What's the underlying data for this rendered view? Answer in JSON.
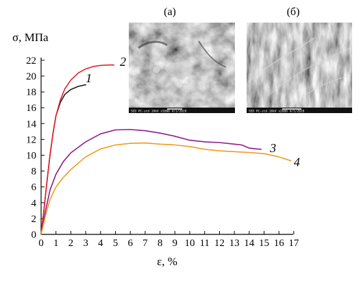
{
  "chart_data": {
    "type": "line",
    "title": "",
    "xlabel": "ε, %",
    "ylabel": "σ, МПа",
    "xlim": [
      0,
      17
    ],
    "ylim": [
      0,
      22
    ],
    "x_ticks": [
      "0",
      "1",
      "2",
      "3",
      "4",
      "5",
      "6",
      "7",
      "8",
      "9",
      "10",
      "11",
      "12",
      "13",
      "14",
      "15",
      "16",
      "17"
    ],
    "y_ticks": [
      "0",
      "2",
      "4",
      "6",
      "8",
      "10",
      "12",
      "14",
      "16",
      "18",
      "20",
      "22"
    ],
    "grid": false,
    "series": [
      {
        "name": "1",
        "color": "#1a1a1a",
        "points": [
          [
            0,
            0
          ],
          [
            0.2,
            3.2
          ],
          [
            0.4,
            6.8
          ],
          [
            0.6,
            10.0
          ],
          [
            0.8,
            12.8
          ],
          [
            1.0,
            15.0
          ],
          [
            1.3,
            16.7
          ],
          [
            1.6,
            17.7
          ],
          [
            2.0,
            18.3
          ],
          [
            2.5,
            18.7
          ],
          [
            3.0,
            18.9
          ]
        ]
      },
      {
        "name": "2",
        "color": "#e8202a",
        "points": [
          [
            0,
            0
          ],
          [
            0.2,
            3.2
          ],
          [
            0.4,
            6.8
          ],
          [
            0.6,
            10.0
          ],
          [
            0.8,
            12.8
          ],
          [
            1.0,
            15.0
          ],
          [
            1.3,
            17.0
          ],
          [
            1.6,
            18.4
          ],
          [
            2.0,
            19.5
          ],
          [
            2.5,
            20.4
          ],
          [
            3.0,
            20.9
          ],
          [
            3.5,
            21.2
          ],
          [
            4.0,
            21.35
          ],
          [
            4.6,
            21.4
          ],
          [
            4.9,
            21.4
          ]
        ]
      },
      {
        "name": "3",
        "color": "#8b1a8f",
        "points": [
          [
            0,
            0
          ],
          [
            0.3,
            3.0
          ],
          [
            0.6,
            5.6
          ],
          [
            1.0,
            7.6
          ],
          [
            1.5,
            9.2
          ],
          [
            2.0,
            10.3
          ],
          [
            3.0,
            11.7
          ],
          [
            4.0,
            12.7
          ],
          [
            5.0,
            13.2
          ],
          [
            6.0,
            13.25
          ],
          [
            7.0,
            13.1
          ],
          [
            8.0,
            12.8
          ],
          [
            9.0,
            12.4
          ],
          [
            10.0,
            11.9
          ],
          [
            11.0,
            11.7
          ],
          [
            12.0,
            11.6
          ],
          [
            13.0,
            11.4
          ],
          [
            13.5,
            11.3
          ],
          [
            14.0,
            10.9
          ],
          [
            14.5,
            10.8
          ],
          [
            14.8,
            10.75
          ]
        ]
      },
      {
        "name": "4",
        "color": "#f29a1c",
        "points": [
          [
            0,
            0
          ],
          [
            0.3,
            2.4
          ],
          [
            0.6,
            4.4
          ],
          [
            1.0,
            6.0
          ],
          [
            1.5,
            7.2
          ],
          [
            2.0,
            8.2
          ],
          [
            3.0,
            9.8
          ],
          [
            4.0,
            10.8
          ],
          [
            5.0,
            11.3
          ],
          [
            6.0,
            11.5
          ],
          [
            7.0,
            11.55
          ],
          [
            8.0,
            11.4
          ],
          [
            9.0,
            11.3
          ],
          [
            10.0,
            11.1
          ],
          [
            11.0,
            10.75
          ],
          [
            12.0,
            10.55
          ],
          [
            13.0,
            10.45
          ],
          [
            14.0,
            10.35
          ],
          [
            15.0,
            10.2
          ],
          [
            16.0,
            9.8
          ],
          [
            16.8,
            9.3
          ]
        ]
      }
    ],
    "series_labels": [
      {
        "text": "1",
        "x": 3.0,
        "y": 19.2
      },
      {
        "text": "2",
        "x": 5.3,
        "y": 21.3
      },
      {
        "text": "3",
        "x": 15.4,
        "y": 10.4
      },
      {
        "text": "4",
        "x": 17.0,
        "y": 8.6
      }
    ],
    "insets": [
      {
        "label": "(а)",
        "footer": "SED PC-std 10kV x1600 4/1/2020"
      },
      {
        "label": "(б)",
        "footer": "SED PC-std 10kV x2000 4/1/2020"
      }
    ]
  }
}
